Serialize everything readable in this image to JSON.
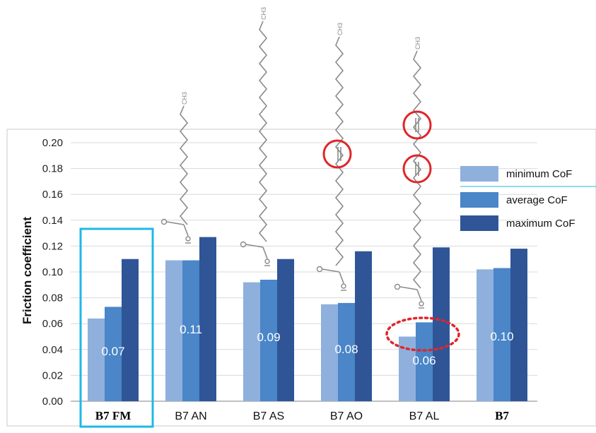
{
  "chart_data": {
    "type": "bar",
    "ylabel": "Friction coefficient",
    "ylim": [
      0,
      0.2
    ],
    "yticks": [
      "0.00",
      "0.02",
      "0.04",
      "0.06",
      "0.08",
      "0.10",
      "0.12",
      "0.14",
      "0.16",
      "0.18",
      "0.20"
    ],
    "categories": [
      "B7 FM",
      "B7 AN",
      "B7 AS",
      "B7 AO",
      "B7 AL",
      "B7"
    ],
    "bold_categories": [
      "B7 FM",
      "B7"
    ],
    "series": [
      {
        "name": "minimum CoF",
        "values": [
          0.064,
          0.109,
          0.092,
          0.075,
          0.05,
          0.102
        ],
        "color": "#8fb0dc"
      },
      {
        "name": "average CoF",
        "values": [
          0.073,
          0.109,
          0.094,
          0.076,
          0.061,
          0.103
        ],
        "color": "#4a86c8"
      },
      {
        "name": "maximum CoF",
        "values": [
          0.11,
          0.127,
          0.11,
          0.116,
          0.119,
          0.118
        ],
        "color": "#2f5597"
      }
    ],
    "bar_labels": [
      "0.07",
      "0.11",
      "0.09",
      "0.08",
      "0.06",
      "0.10"
    ],
    "legend_position": "right",
    "grid": true,
    "annotations": {
      "highlight_box": "B7 FM",
      "dotted_ellipse": "B7 AL",
      "molecule_methyl_label": "CH3"
    }
  },
  "colors": {
    "highlight_box": "#1fb8e6",
    "annotation_red": "#e0262a",
    "molecule": "#8a8a8a"
  }
}
